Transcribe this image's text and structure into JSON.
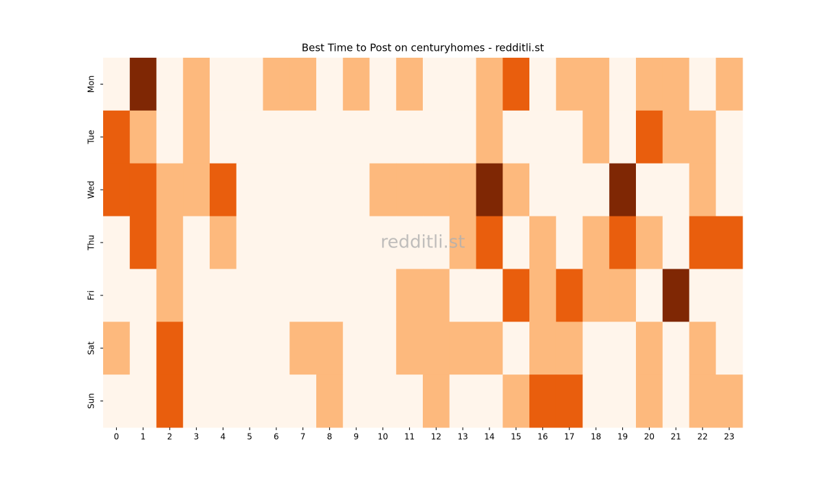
{
  "chart_data": {
    "type": "heatmap",
    "title": "Best Time to Post on centuryhomes - redditli.st",
    "watermark": "redditli.st",
    "x": [
      0,
      1,
      2,
      3,
      4,
      5,
      6,
      7,
      8,
      9,
      10,
      11,
      12,
      13,
      14,
      15,
      16,
      17,
      18,
      19,
      20,
      21,
      22,
      23
    ],
    "y": [
      "Mon",
      "Tue",
      "Wed",
      "Thu",
      "Fri",
      "Sat",
      "Sun"
    ],
    "colors": [
      "#fff5eb",
      "#fdb97d",
      "#e95e0d",
      "#7f2704"
    ],
    "values": [
      [
        0,
        3,
        0,
        1,
        0,
        0,
        1,
        1,
        0,
        1,
        0,
        1,
        0,
        0,
        1,
        2,
        0,
        1,
        1,
        0,
        1,
        1,
        0,
        1
      ],
      [
        2,
        1,
        0,
        1,
        0,
        0,
        0,
        0,
        0,
        0,
        0,
        0,
        0,
        0,
        1,
        0,
        0,
        0,
        1,
        0,
        2,
        1,
        1,
        0
      ],
      [
        2,
        2,
        1,
        1,
        2,
        0,
        0,
        0,
        0,
        0,
        1,
        1,
        1,
        1,
        3,
        1,
        0,
        0,
        0,
        3,
        0,
        0,
        1,
        0
      ],
      [
        0,
        2,
        1,
        0,
        1,
        0,
        0,
        0,
        0,
        0,
        0,
        0,
        0,
        1,
        2,
        0,
        1,
        0,
        1,
        2,
        1,
        0,
        2,
        2
      ],
      [
        0,
        0,
        1,
        0,
        0,
        0,
        0,
        0,
        0,
        0,
        0,
        1,
        1,
        0,
        0,
        2,
        1,
        2,
        1,
        1,
        0,
        3,
        0,
        0
      ],
      [
        1,
        0,
        2,
        0,
        0,
        0,
        0,
        1,
        1,
        0,
        0,
        1,
        1,
        1,
        1,
        0,
        1,
        1,
        0,
        0,
        1,
        0,
        1,
        0
      ],
      [
        0,
        0,
        2,
        0,
        0,
        0,
        0,
        0,
        1,
        0,
        0,
        0,
        1,
        0,
        0,
        1,
        2,
        2,
        0,
        0,
        1,
        0,
        1,
        1
      ]
    ]
  }
}
